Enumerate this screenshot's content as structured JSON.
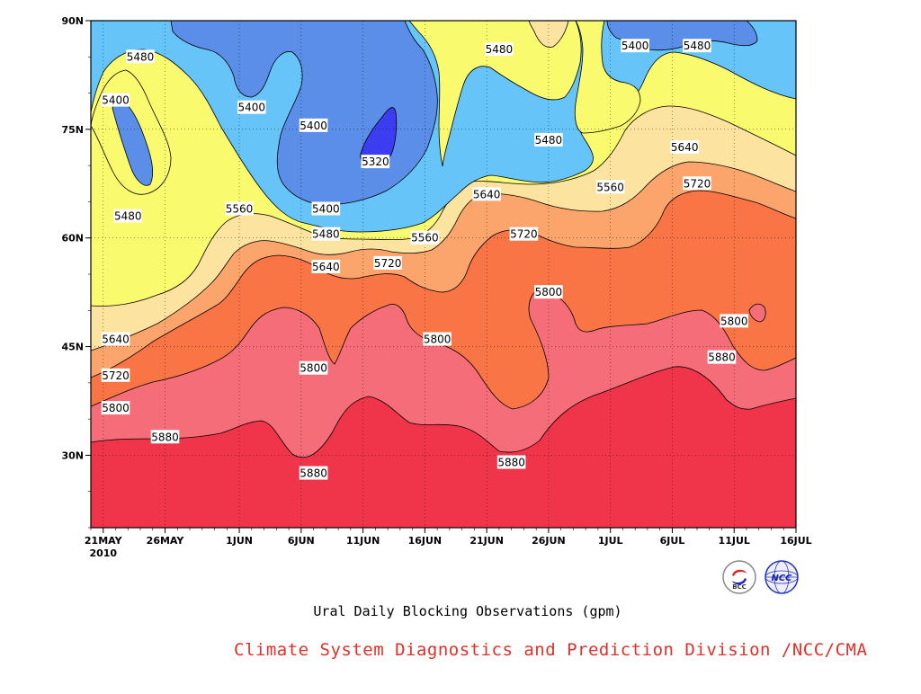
{
  "chart_data": {
    "type": "contour",
    "title": "Ural Daily Blocking Observations (gpm)",
    "xlabel": "",
    "ylabel": "",
    "x_ticks": [
      "21MAY",
      "26MAY",
      "1JUN",
      "6JUN",
      "11JUN",
      "16JUN",
      "21JUN",
      "26JUN",
      "1JUL",
      "6JUL",
      "11JUL",
      "16JUL"
    ],
    "x_year_label": "2010",
    "x_range": [
      "2010-05-20",
      "2010-07-16"
    ],
    "y_ticks": [
      "30N",
      "45N",
      "60N",
      "75N",
      "90N"
    ],
    "y_range": [
      20,
      90
    ],
    "grid": true,
    "contour_levels": [
      5320,
      5400,
      5480,
      5560,
      5640,
      5720,
      5800,
      5880
    ],
    "contour_labels": [
      {
        "value": "5480",
        "date": "2010-05-24",
        "lat": 85
      },
      {
        "value": "5400",
        "date": "2010-05-22",
        "lat": 79
      },
      {
        "value": "5480",
        "date": "2010-05-23",
        "lat": 63
      },
      {
        "value": "5400",
        "date": "2010-06-02",
        "lat": 78
      },
      {
        "value": "5400",
        "date": "2010-06-07",
        "lat": 75.5
      },
      {
        "value": "5320",
        "date": "2010-06-12",
        "lat": 70.5
      },
      {
        "value": "5400",
        "date": "2010-06-08",
        "lat": 64
      },
      {
        "value": "5560",
        "date": "2010-06-01",
        "lat": 64
      },
      {
        "value": "5480",
        "date": "2010-06-08",
        "lat": 60.5
      },
      {
        "value": "5560",
        "date": "2010-06-16",
        "lat": 60
      },
      {
        "value": "5640",
        "date": "2010-06-08",
        "lat": 56
      },
      {
        "value": "5720",
        "date": "2010-06-13",
        "lat": 56.5
      },
      {
        "value": "5480",
        "date": "2010-06-22",
        "lat": 86
      },
      {
        "value": "5480",
        "date": "2010-06-26",
        "lat": 73.5
      },
      {
        "value": "5560",
        "date": "2010-07-01",
        "lat": 67
      },
      {
        "value": "5640",
        "date": "2010-06-21",
        "lat": 66
      },
      {
        "value": "5720",
        "date": "2010-06-24",
        "lat": 60.5
      },
      {
        "value": "5800",
        "date": "2010-06-26",
        "lat": 52.5
      },
      {
        "value": "5400",
        "date": "2010-07-03",
        "lat": 86.5
      },
      {
        "value": "5480",
        "date": "2010-07-08",
        "lat": 86.5
      },
      {
        "value": "5640",
        "date": "2010-07-07",
        "lat": 72.5
      },
      {
        "value": "5720",
        "date": "2010-07-08",
        "lat": 67.5
      },
      {
        "value": "5800",
        "date": "2010-07-11",
        "lat": 48.5
      },
      {
        "value": "5880",
        "date": "2010-07-10",
        "lat": 43.5
      },
      {
        "value": "5800",
        "date": "2010-06-17",
        "lat": 46
      },
      {
        "value": "5640",
        "date": "2010-05-22",
        "lat": 46
      },
      {
        "value": "5720",
        "date": "2010-05-22",
        "lat": 41
      },
      {
        "value": "5800",
        "date": "2010-05-22",
        "lat": 36.5
      },
      {
        "value": "5880",
        "date": "2010-05-26",
        "lat": 32.5
      },
      {
        "value": "5800",
        "date": "2010-06-07",
        "lat": 42
      },
      {
        "value": "5880",
        "date": "2010-06-07",
        "lat": 27.5
      },
      {
        "value": "5880",
        "date": "2010-06-23",
        "lat": 29
      }
    ]
  },
  "footer": {
    "title": "Ural Daily Blocking Observations (gpm)",
    "credit": "Climate System Diagnostics and Prediction Division /NCC/CMA"
  },
  "logos": {
    "bcc_text": "BCC",
    "ncc_text": "NCC"
  },
  "colors": {
    "band_5320_5400": "#3c3cf0",
    "band_5400_5480": "#5a8ee8",
    "band_5480_5560": "#66c4f8",
    "band_5560_5640": "#fafa6e",
    "band_5640_5720": "#fde3a0",
    "band_5720_5800": "#fba56c",
    "band_5800_5880": "#fa7545",
    "band_5880_5960": "#f56d78",
    "band_above_5960": "#f0354a",
    "credit_red": "#e0302a"
  }
}
